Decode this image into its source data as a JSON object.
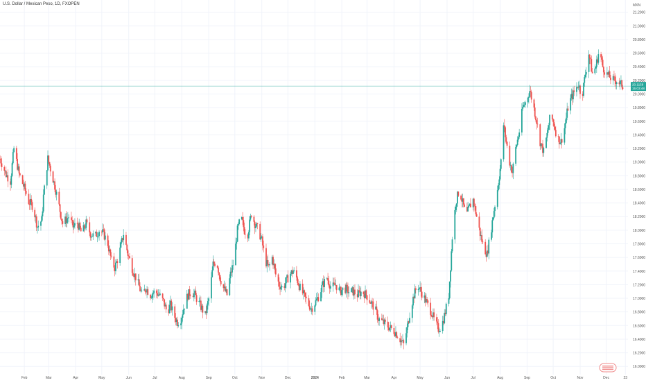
{
  "chart_title": "U.S. Dollar / Mexican Peso, 1D, FXOPEN",
  "colors": {
    "up": "#26a69a",
    "down": "#ef5350",
    "grid": "#f0f3fa",
    "axis_text": "#555555",
    "price_line": "#26a69a"
  },
  "chart_data": {
    "type": "candlestick",
    "title": "U.S. Dollar / Mexican Peso, 1D, FXOPEN",
    "ylim": [
      15.88,
      21.38
    ],
    "grid": true,
    "y_ticks": [
      "16.0000",
      "16.2000",
      "16.4000",
      "16.6000",
      "16.8000",
      "17.0000",
      "17.2000",
      "17.4000",
      "17.6000",
      "17.8000",
      "18.0000",
      "18.2000",
      "18.4000",
      "18.6000",
      "18.8000",
      "19.0000",
      "19.2000",
      "19.4000",
      "19.6000",
      "19.8000",
      "20.0000",
      "20.2000",
      "20.4000",
      "20.6000",
      "20.8000",
      "21.0000",
      "21.2000"
    ],
    "y_axis_top_label": "MXN",
    "x_ticks": [
      {
        "label": "Feb",
        "date": "2023-02-01"
      },
      {
        "label": "Mar",
        "date": "2023-03-01"
      },
      {
        "label": "Apr",
        "date": "2023-04-01"
      },
      {
        "label": "May",
        "date": "2023-05-01"
      },
      {
        "label": "Jun",
        "date": "2023-06-01"
      },
      {
        "label": "Jul",
        "date": "2023-07-01"
      },
      {
        "label": "Aug",
        "date": "2023-08-01"
      },
      {
        "label": "Sep",
        "date": "2023-09-01"
      },
      {
        "label": "Oct",
        "date": "2023-10-01"
      },
      {
        "label": "Nov",
        "date": "2023-11-01"
      },
      {
        "label": "Dec",
        "date": "2023-12-01"
      },
      {
        "label": "2024",
        "date": "2024-01-01"
      },
      {
        "label": "Feb",
        "date": "2024-02-01"
      },
      {
        "label": "Mar",
        "date": "2024-03-01"
      },
      {
        "label": "Apr",
        "date": "2024-04-01"
      },
      {
        "label": "May",
        "date": "2024-05-01"
      },
      {
        "label": "Jun",
        "date": "2024-06-01"
      },
      {
        "label": "Jul",
        "date": "2024-07-01"
      },
      {
        "label": "Aug",
        "date": "2024-08-01"
      },
      {
        "label": "Sep",
        "date": "2024-09-01"
      },
      {
        "label": "Oct",
        "date": "2024-10-01"
      },
      {
        "label": "Nov",
        "date": "2024-11-01"
      },
      {
        "label": "Dec",
        "date": "2024-12-01"
      },
      {
        "label": "23",
        "date": "2024-12-23"
      }
    ],
    "x_range": [
      "2023-01-04",
      "2024-12-26"
    ],
    "last_price": "20.1158",
    "countdown": "15:03:48",
    "path": [
      [
        "2023-01-04",
        19.05
      ],
      [
        "2023-01-11",
        18.82
      ],
      [
        "2023-01-16",
        18.72
      ],
      [
        "2023-01-20",
        19.2
      ],
      [
        "2023-01-26",
        18.82
      ],
      [
        "2023-02-01",
        18.62
      ],
      [
        "2023-02-06",
        18.42
      ],
      [
        "2023-02-11",
        18.35
      ],
      [
        "2023-02-16",
        18.05
      ],
      [
        "2023-02-21",
        18.15
      ],
      [
        "2023-02-23",
        18.5
      ],
      [
        "2023-02-28",
        19.05
      ],
      [
        "2023-03-03",
        18.9
      ],
      [
        "2023-03-08",
        18.65
      ],
      [
        "2023-03-13",
        18.35
      ],
      [
        "2023-03-17",
        18.1
      ],
      [
        "2023-03-24",
        18.2
      ],
      [
        "2023-03-29",
        18.05
      ],
      [
        "2023-04-03",
        18.1
      ],
      [
        "2023-04-08",
        17.95
      ],
      [
        "2023-04-13",
        18.1
      ],
      [
        "2023-04-18",
        17.95
      ],
      [
        "2023-04-23",
        17.9
      ],
      [
        "2023-04-28",
        18.0
      ],
      [
        "2023-05-03",
        17.95
      ],
      [
        "2023-05-08",
        17.8
      ],
      [
        "2023-05-12",
        17.55
      ],
      [
        "2023-05-16",
        17.45
      ],
      [
        "2023-05-21",
        17.65
      ],
      [
        "2023-05-26",
        17.95
      ],
      [
        "2023-05-31",
        17.65
      ],
      [
        "2023-06-06",
        17.4
      ],
      [
        "2023-06-11",
        17.25
      ],
      [
        "2023-06-16",
        17.05
      ],
      [
        "2023-06-21",
        17.15
      ],
      [
        "2023-06-26",
        17.05
      ],
      [
        "2023-07-01",
        17.1
      ],
      [
        "2023-07-06",
        17.05
      ],
      [
        "2023-07-11",
        16.95
      ],
      [
        "2023-07-15",
        16.8
      ],
      [
        "2023-07-19",
        16.9
      ],
      [
        "2023-07-23",
        16.75
      ],
      [
        "2023-07-27",
        16.65
      ],
      [
        "2023-07-31",
        16.7
      ],
      [
        "2023-08-04",
        16.9
      ],
      [
        "2023-08-08",
        17.05
      ],
      [
        "2023-08-12",
        17.1
      ],
      [
        "2023-08-16",
        17.05
      ],
      [
        "2023-08-20",
        16.95
      ],
      [
        "2023-08-24",
        16.85
      ],
      [
        "2023-08-28",
        16.75
      ],
      [
        "2023-09-02",
        17.05
      ],
      [
        "2023-09-06",
        17.5
      ],
      [
        "2023-09-10",
        17.55
      ],
      [
        "2023-09-14",
        17.3
      ],
      [
        "2023-09-18",
        17.15
      ],
      [
        "2023-09-22",
        17.05
      ],
      [
        "2023-09-26",
        17.35
      ],
      [
        "2023-09-30",
        17.55
      ],
      [
        "2023-10-04",
        18.0
      ],
      [
        "2023-10-08",
        18.2
      ],
      [
        "2023-10-12",
        18.0
      ],
      [
        "2023-10-16",
        17.95
      ],
      [
        "2023-10-20",
        18.25
      ],
      [
        "2023-10-24",
        18.1
      ],
      [
        "2023-10-28",
        18.0
      ],
      [
        "2023-11-01",
        17.85
      ],
      [
        "2023-11-05",
        17.55
      ],
      [
        "2023-11-09",
        17.45
      ],
      [
        "2023-11-13",
        17.6
      ],
      [
        "2023-11-17",
        17.35
      ],
      [
        "2023-11-21",
        17.2
      ],
      [
        "2023-11-25",
        17.15
      ],
      [
        "2023-11-29",
        17.25
      ],
      [
        "2023-12-03",
        17.35
      ],
      [
        "2023-12-07",
        17.4
      ],
      [
        "2023-12-11",
        17.3
      ],
      [
        "2023-12-15",
        17.15
      ],
      [
        "2023-12-19",
        17.05
      ],
      [
        "2023-12-23",
        16.95
      ],
      [
        "2023-12-28",
        16.85
      ],
      [
        "2024-01-02",
        16.95
      ],
      [
        "2024-01-06",
        17.05
      ],
      [
        "2024-01-10",
        17.2
      ],
      [
        "2024-01-15",
        17.3
      ],
      [
        "2024-01-20",
        17.15
      ],
      [
        "2024-01-25",
        17.2
      ],
      [
        "2024-01-30",
        17.1
      ],
      [
        "2024-02-04",
        17.15
      ],
      [
        "2024-02-09",
        17.1
      ],
      [
        "2024-02-14",
        17.1
      ],
      [
        "2024-02-19",
        17.05
      ],
      [
        "2024-02-24",
        17.1
      ],
      [
        "2024-02-29",
        17.05
      ],
      [
        "2024-03-05",
        16.95
      ],
      [
        "2024-03-10",
        16.85
      ],
      [
        "2024-03-14",
        16.7
      ],
      [
        "2024-03-19",
        16.65
      ],
      [
        "2024-03-24",
        16.6
      ],
      [
        "2024-03-29",
        16.55
      ],
      [
        "2024-04-03",
        16.5
      ],
      [
        "2024-04-08",
        16.4
      ],
      [
        "2024-04-12",
        16.32
      ],
      [
        "2024-04-16",
        16.55
      ],
      [
        "2024-04-20",
        16.85
      ],
      [
        "2024-04-24",
        17.05
      ],
      [
        "2024-04-28",
        17.2
      ],
      [
        "2024-05-02",
        17.1
      ],
      [
        "2024-05-06",
        17.0
      ],
      [
        "2024-05-10",
        16.9
      ],
      [
        "2024-05-14",
        16.8
      ],
      [
        "2024-05-18",
        16.65
      ],
      [
        "2024-05-22",
        16.55
      ],
      [
        "2024-05-26",
        16.6
      ],
      [
        "2024-05-30",
        16.8
      ],
      [
        "2024-06-03",
        17.05
      ],
      [
        "2024-06-07",
        17.9
      ],
      [
        "2024-06-11",
        18.4
      ],
      [
        "2024-06-15",
        18.6
      ],
      [
        "2024-06-19",
        18.4
      ],
      [
        "2024-06-23",
        18.2
      ],
      [
        "2024-06-27",
        18.35
      ],
      [
        "2024-07-01",
        18.45
      ],
      [
        "2024-07-05",
        18.2
      ],
      [
        "2024-07-09",
        17.95
      ],
      [
        "2024-07-13",
        17.75
      ],
      [
        "2024-07-17",
        17.65
      ],
      [
        "2024-07-21",
        17.95
      ],
      [
        "2024-07-25",
        18.3
      ],
      [
        "2024-07-29",
        18.6
      ],
      [
        "2024-08-02",
        19.0
      ],
      [
        "2024-08-05",
        19.55
      ],
      [
        "2024-08-08",
        19.3
      ],
      [
        "2024-08-12",
        19.0
      ],
      [
        "2024-08-15",
        18.85
      ],
      [
        "2024-08-19",
        19.2
      ],
      [
        "2024-08-23",
        19.45
      ],
      [
        "2024-08-27",
        19.8
      ],
      [
        "2024-08-31",
        19.9
      ],
      [
        "2024-09-04",
        20.05
      ],
      [
        "2024-09-08",
        19.85
      ],
      [
        "2024-09-12",
        19.6
      ],
      [
        "2024-09-16",
        19.3
      ],
      [
        "2024-09-20",
        19.15
      ],
      [
        "2024-09-24",
        19.4
      ],
      [
        "2024-09-28",
        19.7
      ],
      [
        "2024-10-02",
        19.55
      ],
      [
        "2024-10-06",
        19.35
      ],
      [
        "2024-10-10",
        19.3
      ],
      [
        "2024-10-14",
        19.5
      ],
      [
        "2024-10-18",
        19.8
      ],
      [
        "2024-10-22",
        19.95
      ],
      [
        "2024-10-26",
        20.05
      ],
      [
        "2024-10-30",
        20.15
      ],
      [
        "2024-11-03",
        19.95
      ],
      [
        "2024-11-07",
        20.3
      ],
      [
        "2024-11-11",
        20.6
      ],
      [
        "2024-11-15",
        20.3
      ],
      [
        "2024-11-19",
        20.4
      ],
      [
        "2024-11-23",
        20.65
      ],
      [
        "2024-11-27",
        20.4
      ],
      [
        "2024-12-01",
        20.3
      ],
      [
        "2024-12-05",
        20.25
      ],
      [
        "2024-12-09",
        20.2
      ],
      [
        "2024-12-13",
        20.2
      ],
      [
        "2024-12-17",
        20.15
      ],
      [
        "2024-12-20",
        20.12
      ]
    ]
  }
}
